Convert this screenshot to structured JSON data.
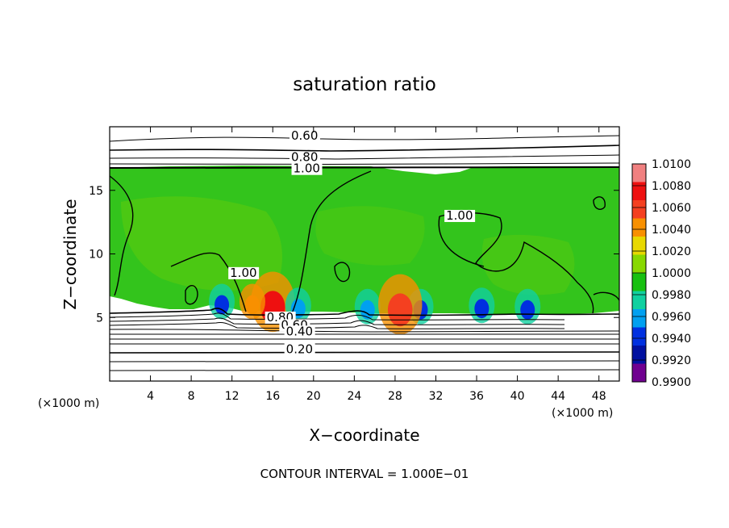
{
  "chart_data": {
    "type": "heatmap",
    "title": "saturation ratio",
    "xlabel": "X−coordinate",
    "ylabel": "Z−coordinate",
    "x_unit": "(×1000 m)",
    "y_unit": "(×1000 m)",
    "xlim": [
      0,
      50
    ],
    "ylim": [
      0,
      20
    ],
    "x_ticks": [
      4,
      8,
      12,
      16,
      20,
      24,
      28,
      32,
      36,
      40,
      44,
      48
    ],
    "y_ticks": [
      5,
      10,
      15
    ],
    "note": "CONTOUR INTERVAL = 1.000E−01",
    "colorbar": {
      "labels": [
        "1.0100",
        "1.0080",
        "1.0060",
        "1.0040",
        "1.0020",
        "1.0000",
        "0.9980",
        "0.9960",
        "0.9940",
        "0.9920",
        "0.9900"
      ],
      "colors": [
        "#f08080",
        "#ee1010",
        "#f44020",
        "#f89000",
        "#e8d800",
        "#88d800",
        "#18c010",
        "#10d0a0",
        "#00a0f0",
        "#0030e0",
        "#0010a0",
        "#700090"
      ]
    },
    "contour_labels": [
      {
        "text": "0.60",
        "x": 17.8,
        "z": 19.0
      },
      {
        "text": "0.80",
        "x": 17.8,
        "z": 17.3
      },
      {
        "text": "1.00",
        "x": 18.0,
        "z": 16.4
      },
      {
        "text": "1.00",
        "x": 33.0,
        "z": 12.7
      },
      {
        "text": "1.00",
        "x": 11.8,
        "z": 8.2
      },
      {
        "text": "0.80",
        "x": 15.4,
        "z": 4.7
      },
      {
        "text": "0.60",
        "x": 16.8,
        "z": 4.1
      },
      {
        "text": "0.40",
        "x": 17.3,
        "z": 3.6
      },
      {
        "text": "0.20",
        "x": 17.3,
        "z": 2.2
      }
    ],
    "hotspots": [
      {
        "x": 16.0,
        "z": 5.8,
        "value": 1.008
      },
      {
        "x": 11.0,
        "z": 6.0,
        "value": 0.993
      },
      {
        "x": 18.5,
        "z": 5.7,
        "value": 0.995
      },
      {
        "x": 25.3,
        "z": 5.6,
        "value": 0.994
      },
      {
        "x": 30.5,
        "z": 5.6,
        "value": 0.992
      },
      {
        "x": 36.5,
        "z": 5.7,
        "value": 0.993
      },
      {
        "x": 41.0,
        "z": 5.6,
        "value": 0.992
      },
      {
        "x": 14.0,
        "z": 6.0,
        "value": 1.003
      },
      {
        "x": 28.5,
        "z": 5.6,
        "value": 1.006
      }
    ]
  }
}
